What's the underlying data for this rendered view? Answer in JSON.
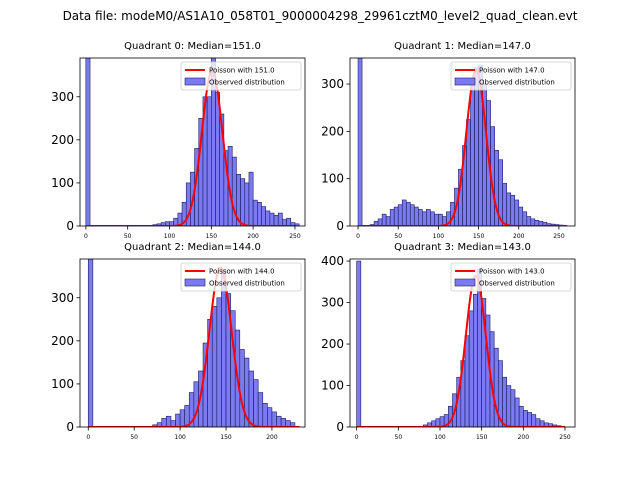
{
  "figure": {
    "suptitle": "Data file: modeM0/AS1A10_058T01_9000004298_29961cztM0_level2_quad_clean.evt"
  },
  "colors": {
    "hist_fill": "#7b7bef",
    "hist_edge": "#1a1a66",
    "poisson_line": "#ff0000",
    "axis": "#000000"
  },
  "chart_data": [
    {
      "type": "bar",
      "title": "Quadrant 0: Median=151.0",
      "legend": {
        "placement": "top-right",
        "poisson_label": "Poisson with 151.0",
        "hist_label": "Observed distribution"
      },
      "xlim": [
        -7,
        262
      ],
      "ylim": [
        0,
        390
      ],
      "xticks": [
        0,
        50,
        100,
        150,
        200,
        250
      ],
      "yticks": [
        0,
        100,
        200,
        300
      ],
      "bin_width": 5,
      "bins": [
        [
          0,
          390
        ],
        [
          80,
          3
        ],
        [
          85,
          5
        ],
        [
          90,
          8
        ],
        [
          95,
          10
        ],
        [
          100,
          10
        ],
        [
          105,
          18
        ],
        [
          110,
          30
        ],
        [
          115,
          55
        ],
        [
          120,
          100
        ],
        [
          125,
          125
        ],
        [
          130,
          180
        ],
        [
          135,
          250
        ],
        [
          140,
          300
        ],
        [
          145,
          300
        ],
        [
          150,
          390
        ],
        [
          155,
          310
        ],
        [
          160,
          260
        ],
        [
          165,
          175
        ],
        [
          170,
          185
        ],
        [
          175,
          160
        ],
        [
          180,
          120
        ],
        [
          185,
          110
        ],
        [
          190,
          100
        ],
        [
          195,
          125
        ],
        [
          200,
          60
        ],
        [
          205,
          55
        ],
        [
          210,
          45
        ],
        [
          215,
          35
        ],
        [
          220,
          30
        ],
        [
          225,
          25
        ],
        [
          230,
          30
        ],
        [
          235,
          15
        ],
        [
          240,
          18
        ],
        [
          245,
          8
        ],
        [
          250,
          5
        ]
      ],
      "poisson": {
        "mean": 151.0,
        "peak": 360,
        "x_range": [
          0,
          250
        ]
      }
    },
    {
      "type": "bar",
      "title": "Quadrant 1: Median=147.0",
      "legend": {
        "placement": "top-right",
        "poisson_label": "Poisson with 147.0",
        "hist_label": "Observed distribution"
      },
      "xlim": [
        -10,
        270
      ],
      "ylim": [
        0,
        355
      ],
      "xticks": [
        0,
        50,
        100,
        150,
        200,
        250
      ],
      "yticks": [
        0,
        100,
        200,
        300
      ],
      "bin_width": 5,
      "bins": [
        [
          0,
          355
        ],
        [
          15,
          3
        ],
        [
          20,
          10
        ],
        [
          25,
          15
        ],
        [
          30,
          25
        ],
        [
          35,
          20
        ],
        [
          40,
          35
        ],
        [
          45,
          40
        ],
        [
          50,
          45
        ],
        [
          55,
          55
        ],
        [
          60,
          50
        ],
        [
          65,
          45
        ],
        [
          70,
          40
        ],
        [
          75,
          35
        ],
        [
          80,
          30
        ],
        [
          85,
          35
        ],
        [
          90,
          30
        ],
        [
          95,
          25
        ],
        [
          100,
          25
        ],
        [
          105,
          20
        ],
        [
          110,
          30
        ],
        [
          115,
          50
        ],
        [
          120,
          80
        ],
        [
          125,
          120
        ],
        [
          130,
          170
        ],
        [
          135,
          225
        ],
        [
          140,
          310
        ],
        [
          145,
          335
        ],
        [
          150,
          340
        ],
        [
          155,
          300
        ],
        [
          160,
          265
        ],
        [
          165,
          210
        ],
        [
          170,
          160
        ],
        [
          175,
          140
        ],
        [
          180,
          90
        ],
        [
          185,
          70
        ],
        [
          190,
          65
        ],
        [
          195,
          55
        ],
        [
          200,
          40
        ],
        [
          205,
          30
        ],
        [
          210,
          20
        ],
        [
          215,
          15
        ],
        [
          220,
          12
        ],
        [
          225,
          10
        ],
        [
          230,
          8
        ],
        [
          235,
          5
        ],
        [
          240,
          4
        ],
        [
          245,
          3
        ],
        [
          250,
          2
        ],
        [
          255,
          1
        ]
      ],
      "poisson": {
        "mean": 147.0,
        "peak": 330,
        "x_range": [
          0,
          260
        ]
      }
    },
    {
      "type": "bar",
      "title": "Quadrant 2: Median=144.0",
      "legend": {
        "placement": "top-right",
        "poisson_label": "Poisson with 144.0",
        "hist_label": "Observed distribution"
      },
      "xlim": [
        -9,
        236
      ],
      "ylim": [
        0,
        390
      ],
      "xticks": [
        0,
        50,
        100,
        150,
        200
      ],
      "yticks": [
        0,
        100,
        200,
        300
      ],
      "bin_width": 5,
      "bins": [
        [
          0,
          390
        ],
        [
          70,
          5
        ],
        [
          75,
          10
        ],
        [
          80,
          20
        ],
        [
          85,
          25
        ],
        [
          90,
          15
        ],
        [
          95,
          30
        ],
        [
          100,
          40
        ],
        [
          105,
          50
        ],
        [
          110,
          80
        ],
        [
          115,
          105
        ],
        [
          120,
          130
        ],
        [
          125,
          195
        ],
        [
          130,
          250
        ],
        [
          135,
          280
        ],
        [
          140,
          300
        ],
        [
          145,
          365
        ],
        [
          150,
          310
        ],
        [
          155,
          270
        ],
        [
          160,
          225
        ],
        [
          165,
          180
        ],
        [
          170,
          160
        ],
        [
          175,
          130
        ],
        [
          180,
          110
        ],
        [
          185,
          80
        ],
        [
          190,
          55
        ],
        [
          195,
          45
        ],
        [
          200,
          35
        ],
        [
          205,
          25
        ],
        [
          210,
          20
        ],
        [
          215,
          15
        ],
        [
          220,
          10
        ]
      ],
      "poisson": {
        "mean": 144.0,
        "peak": 370,
        "x_range": [
          0,
          230
        ]
      }
    },
    {
      "type": "bar",
      "title": "Quadrant 3: Median=143.0",
      "legend": {
        "placement": "top-right",
        "poisson_label": "Poisson with 143.0",
        "hist_label": "Observed distribution"
      },
      "xlim": [
        -8,
        262
      ],
      "ylim": [
        0,
        405
      ],
      "xticks": [
        0,
        50,
        100,
        150,
        200,
        250
      ],
      "yticks": [
        0,
        100,
        200,
        300,
        400
      ],
      "bin_width": 5,
      "bins": [
        [
          0,
          400
        ],
        [
          80,
          5
        ],
        [
          85,
          10
        ],
        [
          90,
          15
        ],
        [
          95,
          20
        ],
        [
          100,
          25
        ],
        [
          105,
          30
        ],
        [
          110,
          50
        ],
        [
          115,
          80
        ],
        [
          120,
          120
        ],
        [
          125,
          160
        ],
        [
          130,
          220
        ],
        [
          135,
          280
        ],
        [
          140,
          320
        ],
        [
          145,
          380
        ],
        [
          150,
          310
        ],
        [
          155,
          270
        ],
        [
          160,
          230
        ],
        [
          165,
          190
        ],
        [
          170,
          160
        ],
        [
          175,
          120
        ],
        [
          180,
          100
        ],
        [
          185,
          90
        ],
        [
          190,
          70
        ],
        [
          195,
          50
        ],
        [
          200,
          40
        ],
        [
          205,
          35
        ],
        [
          210,
          30
        ],
        [
          215,
          20
        ],
        [
          220,
          15
        ],
        [
          225,
          10
        ],
        [
          230,
          8
        ],
        [
          235,
          5
        ],
        [
          240,
          3
        ]
      ],
      "poisson": {
        "mean": 143.0,
        "peak": 365,
        "x_range": [
          0,
          250
        ]
      }
    }
  ]
}
